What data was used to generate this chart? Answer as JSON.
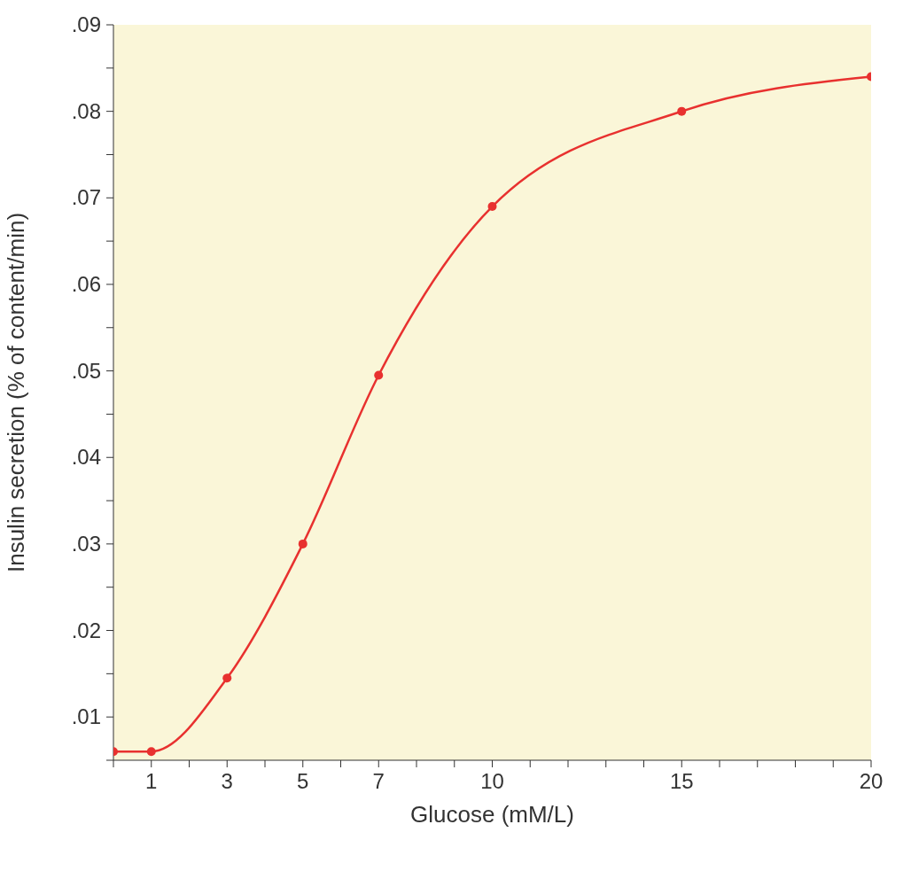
{
  "chart_data": {
    "type": "line",
    "xlabel": "Glucose (mM/L)",
    "ylabel": "Insulin secretion (% of content/min)",
    "series": [
      {
        "color": "#e8312f",
        "x": [
          0,
          1,
          3,
          5,
          7,
          10,
          15,
          20
        ],
        "values": [
          0.006,
          0.006,
          0.0145,
          0.03,
          0.0495,
          0.069,
          0.08,
          0.084
        ]
      }
    ],
    "xlim": [
      0,
      20
    ],
    "xticks": [
      {
        "value": 0,
        "label": null
      },
      1,
      {
        "value": 2,
        "label": null
      },
      3,
      {
        "value": 4,
        "label": null
      },
      5,
      {
        "value": 6,
        "label": null
      },
      7,
      {
        "value": 8,
        "label": null
      },
      {
        "value": 9,
        "label": null
      },
      10,
      {
        "value": 11,
        "label": null
      },
      {
        "value": 12,
        "label": null
      },
      {
        "value": 13,
        "label": null
      },
      {
        "value": 14,
        "label": null
      },
      15,
      {
        "value": 16,
        "label": null
      },
      {
        "value": 17,
        "label": null
      },
      {
        "value": 18,
        "label": null
      },
      {
        "value": 19,
        "label": null
      },
      20
    ],
    "ylim": [
      0.005,
      0.09
    ],
    "yticks": [
      {
        "value": 0.005,
        "label": null
      },
      {
        "value": 0.01,
        "label": ".01"
      },
      {
        "value": 0.015,
        "label": null
      },
      {
        "value": 0.02,
        "label": ".02"
      },
      {
        "value": 0.025,
        "label": null
      },
      {
        "value": 0.03,
        "label": ".03"
      },
      {
        "value": 0.035,
        "label": null
      },
      {
        "value": 0.04,
        "label": ".04"
      },
      {
        "value": 0.045,
        "label": null
      },
      {
        "value": 0.05,
        "label": ".05"
      },
      {
        "value": 0.055,
        "label": null
      },
      {
        "value": 0.06,
        "label": ".06"
      },
      {
        "value": 0.065,
        "label": null
      },
      {
        "value": 0.07,
        "label": ".07"
      },
      {
        "value": 0.075,
        "label": null
      },
      {
        "value": 0.08,
        "label": ".08"
      },
      {
        "value": 0.085,
        "label": null
      },
      {
        "value": 0.09,
        "label": ".09"
      }
    ],
    "marker": "circle",
    "line_style": "solid",
    "grid": false,
    "legend": false
  }
}
